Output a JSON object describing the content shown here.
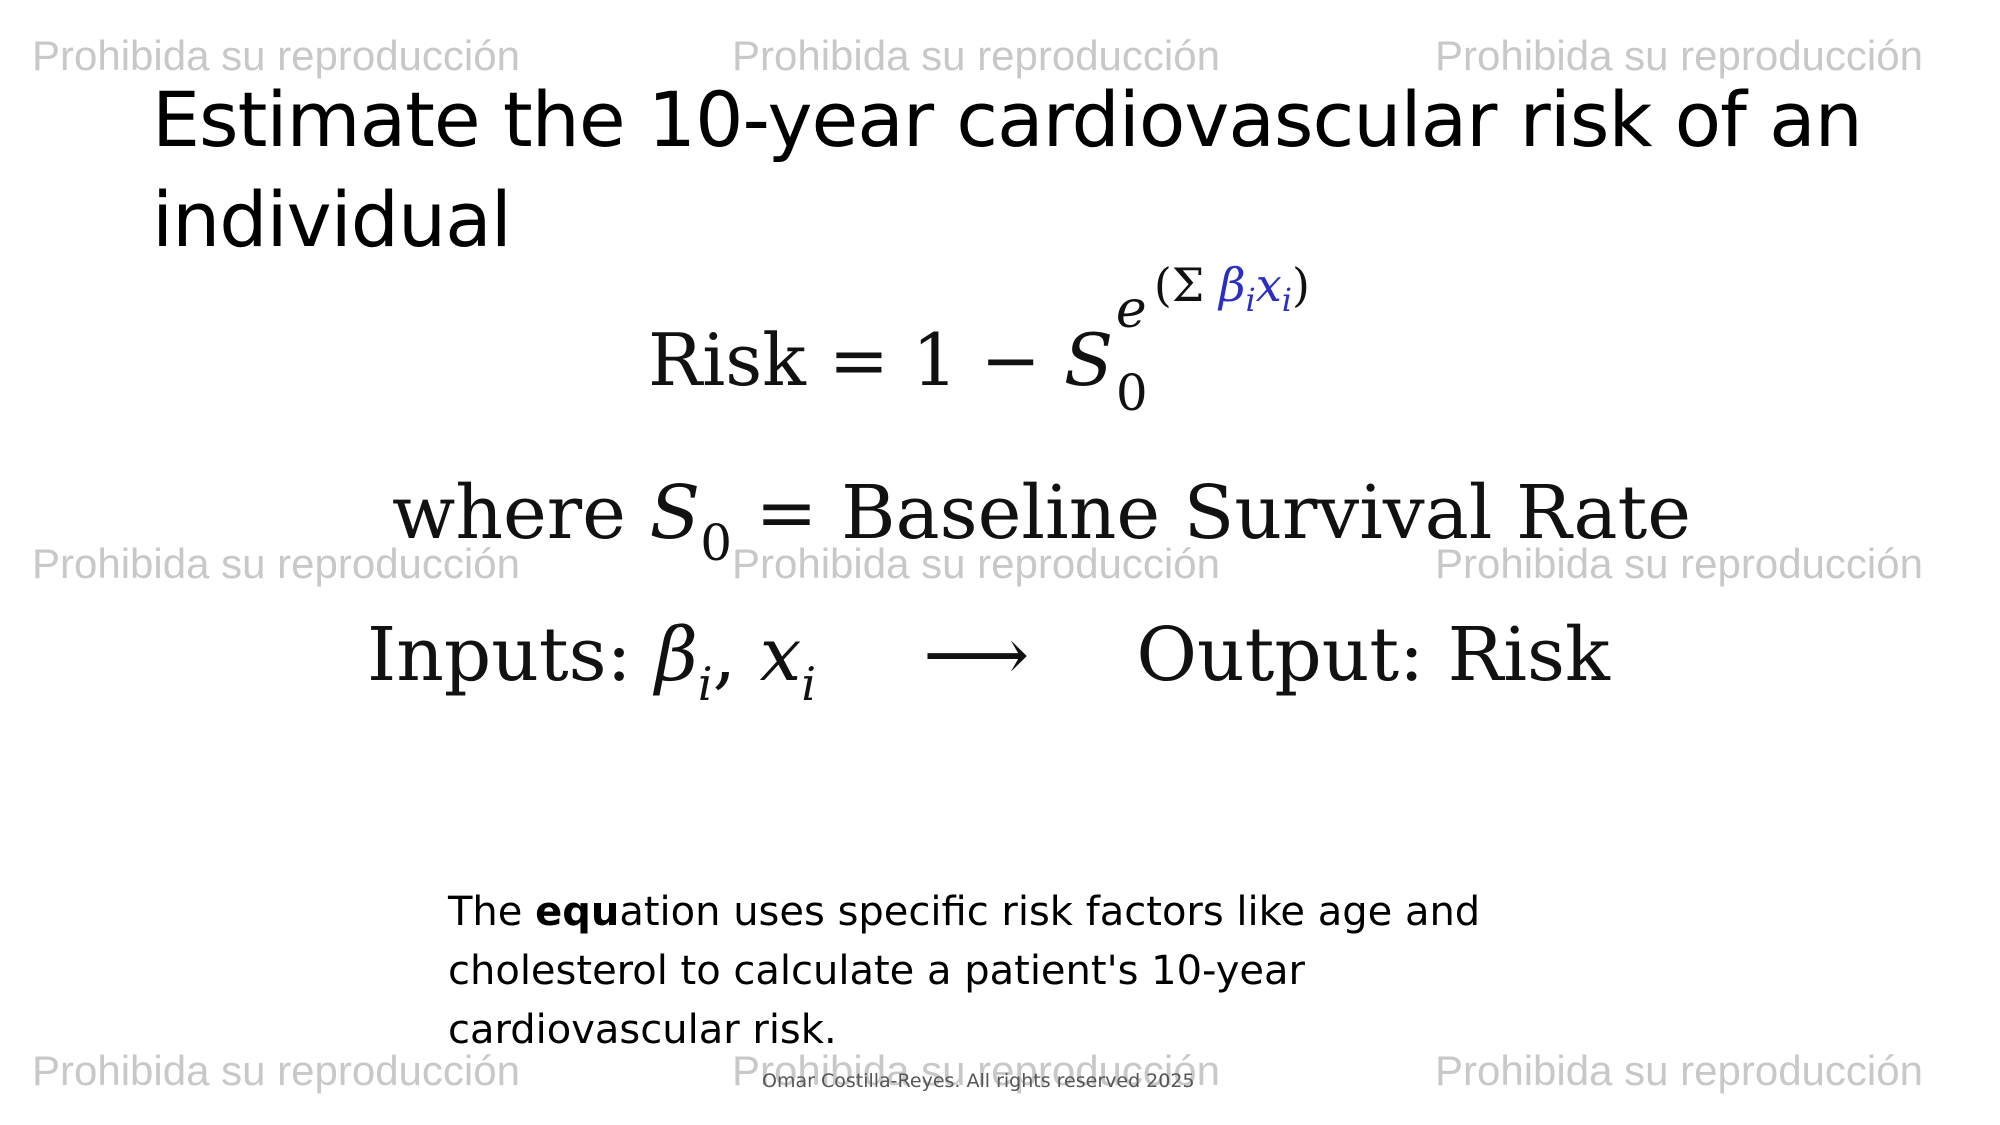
{
  "title": "Estimate the 10-year cardiovascular risk of an individual",
  "watermark": "Prohibida su reproducción",
  "equations": {
    "risk": {
      "lhs": "Risk",
      "eq_op": "=",
      "one": "1",
      "minus": "−",
      "base": "S",
      "base_sub": "0",
      "exp_base": "e",
      "exp_open": "(Σ ",
      "exp_beta": "β",
      "exp_i1": "i",
      "exp_x": "x",
      "exp_i2": "i",
      "exp_close": ")"
    },
    "where": {
      "word": "where",
      "symbol": "S",
      "sub": "0",
      "eq_op": "=",
      "definition": "Baseline Survival Rate"
    },
    "io": {
      "inputs_label": "Inputs:",
      "beta": "β",
      "sub_i1": "i",
      "comma": ",",
      "x": "x",
      "sub_i2": "i",
      "arrow": "⟶",
      "output_label": "Output:",
      "output_value": "Risk"
    }
  },
  "caption": {
    "before": "The ",
    "bold": "equ",
    "after": "ation uses specific risk factors like age and cholesterol to calculate a patient's 10-year cardiovascular risk."
  },
  "footer": "Omar Costilla-Reyes. All rights reserved 2025"
}
